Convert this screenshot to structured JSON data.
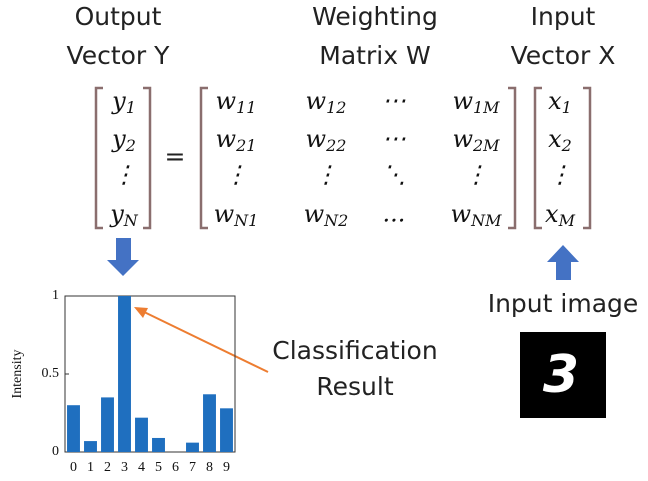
{
  "headers": {
    "output": [
      "Output",
      "Vector Y"
    ],
    "weighting": [
      "Weighting",
      "Matrix W"
    ],
    "input": [
      "Input",
      "Vector X"
    ]
  },
  "matrix": {
    "y": [
      [
        {
          "base": "y",
          "sub": "1"
        }
      ],
      [
        {
          "base": "y",
          "sub": "2"
        }
      ],
      [
        "⋮"
      ],
      [
        {
          "base": "y",
          "sub": "N"
        }
      ]
    ],
    "equals": "=",
    "w": [
      [
        {
          "base": "w",
          "sub": "11"
        },
        {
          "base": "w",
          "sub": "12"
        },
        "⋯",
        {
          "base": "w",
          "sub": "1M"
        }
      ],
      [
        {
          "base": "w",
          "sub": "21"
        },
        {
          "base": "w",
          "sub": "22"
        },
        "⋯",
        {
          "base": "w",
          "sub": "2M"
        }
      ],
      [
        "⋮",
        "⋮",
        "⋱",
        "⋮"
      ],
      [
        {
          "base": "w",
          "sub": "N1"
        },
        {
          "base": "w",
          "sub": "N2"
        },
        "...",
        {
          "base": "w",
          "sub": "NM"
        }
      ]
    ],
    "x": [
      [
        {
          "base": "x",
          "sub": "1"
        }
      ],
      [
        {
          "base": "x",
          "sub": "2"
        }
      ],
      [
        "⋮"
      ],
      [
        {
          "base": "x",
          "sub": "M"
        }
      ]
    ]
  },
  "annotation": [
    "Classification",
    "Result"
  ],
  "input_label": "Input image",
  "input_digit": "3",
  "chart_data": {
    "type": "bar",
    "ylabel": "Intensity",
    "categories": [
      "0",
      "1",
      "2",
      "3",
      "4",
      "5",
      "6",
      "7",
      "8",
      "9"
    ],
    "values": [
      0.3,
      0.07,
      0.35,
      1,
      0.22,
      0.09,
      0,
      0.06,
      0.37,
      0.28
    ],
    "color": "#1f6fbf",
    "ylim": [
      0,
      1
    ],
    "yticks": [
      0,
      0.5,
      1
    ]
  }
}
